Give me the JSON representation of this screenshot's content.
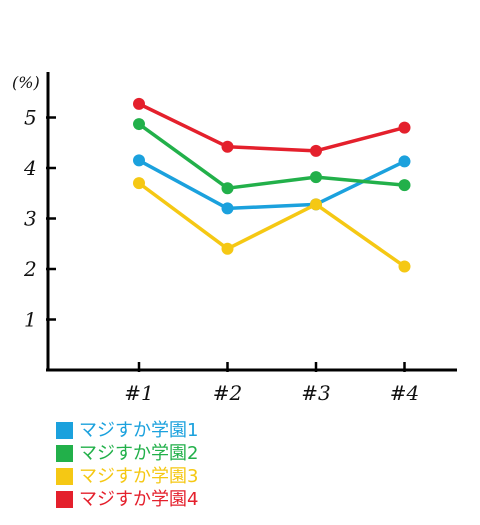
{
  "chart_data": {
    "type": "line",
    "ylabel": "(%)",
    "xlabel": "",
    "categories": [
      "#1",
      "#2",
      "#3",
      "#4"
    ],
    "y_ticks": [
      1,
      2,
      3,
      4,
      5
    ],
    "ylim": [
      0,
      5.9
    ],
    "grid": false,
    "legend_position": "bottom-left",
    "series": [
      {
        "name": "マジすか学園1",
        "color": "#1ba1dd",
        "values": [
          4.15,
          3.2,
          3.28,
          4.13
        ]
      },
      {
        "name": "マジすか学園2",
        "color": "#22b04a",
        "values": [
          4.87,
          3.6,
          3.82,
          3.66
        ]
      },
      {
        "name": "マジすか学園3",
        "color": "#f5c814",
        "values": [
          3.7,
          2.4,
          3.28,
          2.05
        ]
      },
      {
        "name": "マジすか学園4",
        "color": "#e4202c",
        "values": [
          5.27,
          4.42,
          4.34,
          4.8
        ]
      }
    ]
  }
}
